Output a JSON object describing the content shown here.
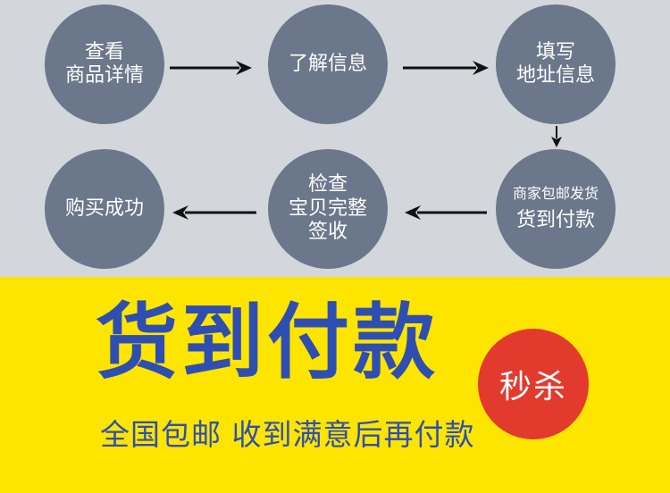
{
  "flow": {
    "steps": [
      {
        "lines": [
          "查看",
          "商品详情"
        ]
      },
      {
        "lines": [
          "了解信息"
        ]
      },
      {
        "lines": [
          "填写",
          "地址信息"
        ]
      },
      {
        "lines": [
          "商家包邮发货",
          "货到付款"
        ]
      },
      {
        "lines": [
          "检查",
          "宝贝完整",
          "签收"
        ]
      },
      {
        "lines": [
          "购买成功"
        ]
      }
    ],
    "circle_color": "#6b778a",
    "arrow_color": "#111111",
    "background_color": "#d3d6db"
  },
  "promo": {
    "headline": "货到付款",
    "badge": "秒杀",
    "subline": "全国包邮 收到满意后再付款",
    "background_color": "#fde500",
    "text_color": "#2e4fb1",
    "badge_color": "#e33a2e"
  }
}
